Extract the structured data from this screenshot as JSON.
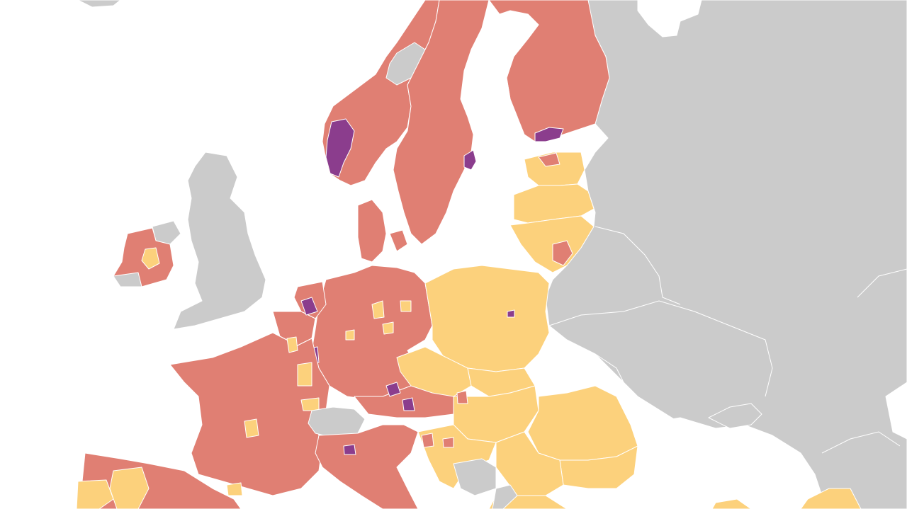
{
  "map": {
    "colors": {
      "background": "#ffffff",
      "non_eu": "#cbcbcb",
      "class_high": "#e07f73",
      "class_low": "#fcd17c",
      "class_top": "#8b3d8d",
      "border": "#ffffff"
    }
  }
}
